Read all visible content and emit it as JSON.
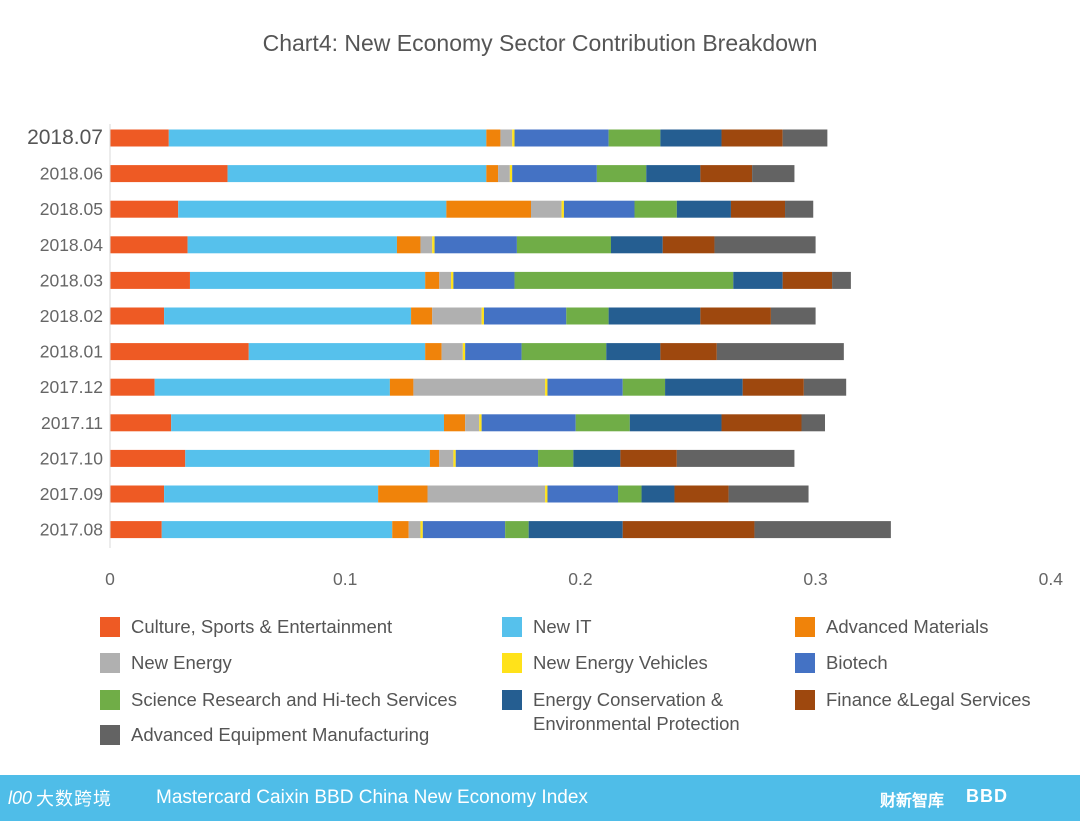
{
  "chart_data": {
    "type": "bar",
    "orientation": "horizontal",
    "stacked": true,
    "title": "Chart4: New Economy Sector Contribution Breakdown",
    "xlabel": "",
    "ylabel": "",
    "xlim": [
      0,
      0.4
    ],
    "xticks": [
      "0",
      "0.1",
      "0.2",
      "0.3",
      "0.4"
    ],
    "grid": false,
    "legend_position": "bottom",
    "categories": [
      "2018.07",
      "2018.06",
      "2018.05",
      "2018.04",
      "2018.03",
      "2018.02",
      "2018.01",
      "2017.12",
      "2017.11",
      "2017.10",
      "2017.09",
      "2017.08"
    ],
    "series": [
      {
        "name": "Culture, Sports & Entertainment",
        "color": "#ee5a24",
        "values": [
          0.025,
          0.05,
          0.029,
          0.033,
          0.034,
          0.023,
          0.059,
          0.019,
          0.026,
          0.032,
          0.023,
          0.022
        ]
      },
      {
        "name": "New IT",
        "color": "#56c1ec",
        "values": [
          0.135,
          0.11,
          0.114,
          0.089,
          0.1,
          0.105,
          0.075,
          0.1,
          0.116,
          0.104,
          0.091,
          0.098
        ]
      },
      {
        "name": "Advanced Materials",
        "color": "#f0830a",
        "values": [
          0.006,
          0.005,
          0.036,
          0.01,
          0.006,
          0.009,
          0.007,
          0.01,
          0.009,
          0.004,
          0.021,
          0.007
        ]
      },
      {
        "name": "New Energy",
        "color": "#b0b0b0",
        "values": [
          0.005,
          0.005,
          0.013,
          0.005,
          0.005,
          0.021,
          0.009,
          0.056,
          0.006,
          0.006,
          0.05,
          0.005
        ]
      },
      {
        "name": "New Energy Vehicles",
        "color": "#ffe21a",
        "values": [
          0.001,
          0.001,
          0.001,
          0.001,
          0.001,
          0.001,
          0.001,
          0.001,
          0.001,
          0.001,
          0.001,
          0.001
        ]
      },
      {
        "name": "Biotech",
        "color": "#4472c4",
        "values": [
          0.04,
          0.036,
          0.03,
          0.035,
          0.026,
          0.035,
          0.024,
          0.032,
          0.04,
          0.035,
          0.03,
          0.035
        ]
      },
      {
        "name": "Science Research and Hi-tech Services",
        "color": "#70ad47",
        "values": [
          0.022,
          0.021,
          0.018,
          0.04,
          0.093,
          0.018,
          0.036,
          0.018,
          0.023,
          0.015,
          0.01,
          0.01
        ]
      },
      {
        "name": "Energy Conservation & Environmental Protection",
        "color": "#255e91",
        "values": [
          0.026,
          0.023,
          0.023,
          0.022,
          0.021,
          0.039,
          0.023,
          0.033,
          0.039,
          0.02,
          0.014,
          0.04
        ]
      },
      {
        "name": "Finance &Legal Services",
        "color": "#9e480e",
        "values": [
          0.026,
          0.022,
          0.023,
          0.022,
          0.021,
          0.03,
          0.024,
          0.026,
          0.034,
          0.024,
          0.023,
          0.056
        ]
      },
      {
        "name": "Advanced Equipment Manufacturing",
        "color": "#636363",
        "values": [
          0.019,
          0.018,
          0.012,
          0.043,
          0.008,
          0.019,
          0.054,
          0.018,
          0.01,
          0.05,
          0.034,
          0.058
        ]
      }
    ]
  },
  "legend": {
    "items": [
      {
        "label": "Culture, Sports & Entertainment",
        "color": "#ee5a24"
      },
      {
        "label": "New IT",
        "color": "#56c1ec"
      },
      {
        "label": "Advanced Materials",
        "color": "#f0830a"
      },
      {
        "label": "New Energy",
        "color": "#b0b0b0"
      },
      {
        "label": "New Energy Vehicles",
        "color": "#ffe21a"
      },
      {
        "label": "Biotech",
        "color": "#4472c4"
      },
      {
        "label": "Science Research and Hi-tech Services",
        "color": "#70ad47"
      },
      {
        "label": "Energy Conservation & Environmental Protection",
        "color": "#255e91"
      },
      {
        "label": "Finance &Legal Services",
        "color": "#9e480e"
      },
      {
        "label": "Advanced Equipment Manufacturing",
        "color": "#636363"
      }
    ]
  },
  "footer": {
    "brand_logo_mark": "l00",
    "brand_left": "大数跨境",
    "title": "Mastercard Caixin BBD China New Economy Index",
    "brand_right_1": "财新智库",
    "brand_right_2": "BBD",
    "background": "#4fbde8"
  }
}
